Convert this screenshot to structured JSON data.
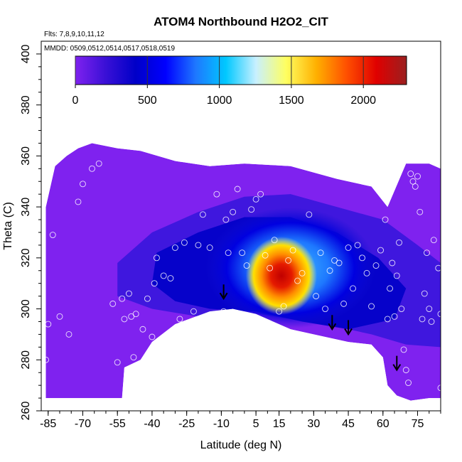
{
  "chart_data": {
    "type": "heatmap",
    "title": "ATOM4 Northbound H2O2_CIT",
    "subtitle_flights": "Flts: 7,8,9,10,11,12",
    "subtitle_dates": "MMDD: 0509,0512,0514,0517,0518,0519",
    "xlabel": "Latitude (deg N)",
    "ylabel": "Theta (C)",
    "xlim": [
      -88,
      85
    ],
    "ylim": [
      260,
      405
    ],
    "x_ticks": [
      -85,
      -70,
      -55,
      -40,
      -25,
      -10,
      5,
      15,
      30,
      45,
      60,
      75
    ],
    "y_ticks": [
      260,
      280,
      300,
      320,
      340,
      360,
      380,
      400
    ],
    "colorbar": {
      "min": 0,
      "max": 2300,
      "ticks": [
        0,
        500,
        1000,
        1500,
        2000
      ],
      "colors": [
        "#7f22ef",
        "#3a10d6",
        "#0000c8",
        "#0000ff",
        "#1e78ff",
        "#00c8ff",
        "#c8f0ff",
        "#ffff60",
        "#ffb000",
        "#ff5000",
        "#e00000",
        "#9a2020"
      ]
    },
    "field_upper_boundary": [
      [
        -86,
        340
      ],
      [
        -82,
        356
      ],
      [
        -77,
        360
      ],
      [
        -72,
        363
      ],
      [
        -66,
        365
      ],
      [
        -55,
        363
      ],
      [
        -45,
        362
      ],
      [
        -30,
        358
      ],
      [
        -15,
        356
      ],
      [
        0,
        357
      ],
      [
        20,
        356
      ],
      [
        40,
        351
      ],
      [
        55,
        348
      ],
      [
        62,
        340
      ],
      [
        70,
        357
      ],
      [
        80,
        357
      ],
      [
        85,
        355
      ]
    ],
    "field_lower_boundary": [
      [
        -86,
        265
      ],
      [
        -60,
        265
      ],
      [
        -53,
        265
      ],
      [
        -52,
        277
      ],
      [
        -45,
        280
      ],
      [
        -40,
        287
      ],
      [
        -30,
        294
      ],
      [
        -15,
        299
      ],
      [
        -5,
        300
      ],
      [
        5,
        298
      ],
      [
        20,
        292
      ],
      [
        35,
        289
      ],
      [
        45,
        287
      ],
      [
        55,
        286
      ],
      [
        60,
        281
      ],
      [
        62,
        270
      ],
      [
        66,
        266
      ],
      [
        72,
        264
      ],
      [
        80,
        265
      ],
      [
        85,
        265
      ]
    ],
    "h2o2_hotspot": {
      "center_lat": 16,
      "center_theta": 313,
      "peak_value": 2250
    },
    "sample_points": [
      [
        -85,
        294
      ],
      [
        -86,
        280
      ],
      [
        -83,
        329
      ],
      [
        -80,
        297
      ],
      [
        -76,
        290
      ],
      [
        -72,
        342
      ],
      [
        -70,
        349
      ],
      [
        -66,
        355
      ],
      [
        -63,
        357
      ],
      [
        -57,
        302
      ],
      [
        -55,
        279
      ],
      [
        -53,
        304
      ],
      [
        -52,
        296
      ],
      [
        -50,
        306
      ],
      [
        -49,
        297
      ],
      [
        -48,
        281
      ],
      [
        -47,
        298
      ],
      [
        -44,
        292
      ],
      [
        -42,
        304
      ],
      [
        -40,
        289
      ],
      [
        -39,
        310
      ],
      [
        -38,
        320
      ],
      [
        -35,
        313
      ],
      [
        -32,
        312
      ],
      [
        -30,
        324
      ],
      [
        -28,
        296
      ],
      [
        -26,
        326
      ],
      [
        -22,
        299
      ],
      [
        -20,
        325
      ],
      [
        -18,
        337
      ],
      [
        -15,
        324
      ],
      [
        -12,
        345
      ],
      [
        -9,
        299
      ],
      [
        -8,
        335
      ],
      [
        -7,
        322
      ],
      [
        -5,
        338
      ],
      [
        -3,
        347
      ],
      [
        -1,
        322
      ],
      [
        1,
        317
      ],
      [
        3,
        339
      ],
      [
        5,
        343
      ],
      [
        7,
        345
      ],
      [
        9,
        321
      ],
      [
        11,
        316
      ],
      [
        13,
        327
      ],
      [
        15,
        299
      ],
      [
        17,
        301
      ],
      [
        19,
        319
      ],
      [
        21,
        323
      ],
      [
        23,
        311
      ],
      [
        25,
        314
      ],
      [
        28,
        337
      ],
      [
        31,
        305
      ],
      [
        33,
        322
      ],
      [
        35,
        300
      ],
      [
        37,
        315
      ],
      [
        39,
        319
      ],
      [
        41,
        318
      ],
      [
        43,
        302
      ],
      [
        45,
        324
      ],
      [
        47,
        308
      ],
      [
        49,
        325
      ],
      [
        51,
        320
      ],
      [
        53,
        314
      ],
      [
        55,
        301
      ],
      [
        57,
        317
      ],
      [
        59,
        323
      ],
      [
        61,
        335
      ],
      [
        62,
        296
      ],
      [
        63,
        308
      ],
      [
        64,
        318
      ],
      [
        65,
        297
      ],
      [
        66,
        313
      ],
      [
        67,
        326
      ],
      [
        68,
        300
      ],
      [
        69,
        284
      ],
      [
        70,
        276
      ],
      [
        71,
        271
      ],
      [
        72,
        353
      ],
      [
        73,
        350
      ],
      [
        74,
        348
      ],
      [
        75,
        352
      ],
      [
        76,
        338
      ],
      [
        77,
        296
      ],
      [
        78,
        306
      ],
      [
        79,
        322
      ],
      [
        80,
        300
      ],
      [
        81,
        295
      ],
      [
        82,
        327
      ],
      [
        84,
        316
      ],
      [
        85,
        298
      ],
      [
        85,
        269
      ]
    ],
    "arrows": [
      {
        "lat": -9,
        "theta": 304
      },
      {
        "lat": 38,
        "theta": 292
      },
      {
        "lat": 45,
        "theta": 290
      },
      {
        "lat": 66,
        "theta": 276
      }
    ]
  }
}
